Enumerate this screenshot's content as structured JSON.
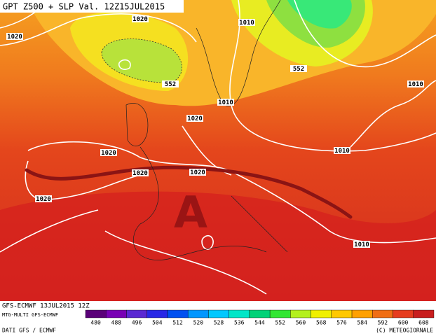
{
  "header": {
    "title": "GPT Z500 + SLP Val. 12Z15JUL2015"
  },
  "map": {
    "contour_labels": [
      "1020",
      "1020",
      "1010",
      "552",
      "552",
      "1010",
      "1010",
      "1020",
      "1020",
      "1010",
      "1020",
      "1020",
      "1020",
      "1010"
    ],
    "high_label": "A"
  },
  "footer": {
    "run": "GFS-ECMWF 13JUL2015 12Z",
    "model": "MTG-MULTI GFS-ECMWF",
    "source": "DATI GFS / ECMWF",
    "credit": "(C) METEOGIORNALE"
  },
  "colorbar": {
    "ticks": [
      480,
      488,
      496,
      504,
      512,
      520,
      528,
      536,
      544,
      552,
      560,
      568,
      576,
      584,
      592,
      600,
      608
    ],
    "colors": [
      "#5a0078",
      "#7800b4",
      "#5a28d2",
      "#2828e6",
      "#0050f0",
      "#0096ff",
      "#00c8ff",
      "#00e6c8",
      "#00d278",
      "#32e632",
      "#b4f01e",
      "#f0f000",
      "#ffc800",
      "#ffa000",
      "#f06e14",
      "#e63c1e",
      "#c81e1e"
    ]
  }
}
